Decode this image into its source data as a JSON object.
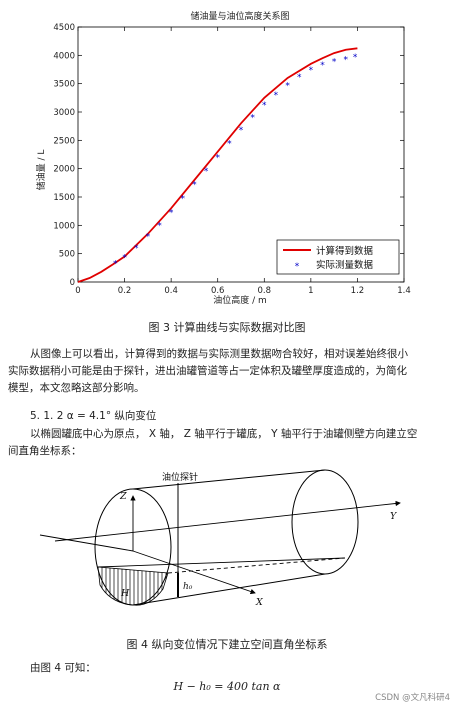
{
  "chart_data": {
    "type": "line",
    "title": "储油量与油位高度关系图",
    "xlabel": "油位高度 / m",
    "ylabel": "储油量 / L",
    "xlim": [
      0,
      1.4
    ],
    "ylim": [
      0,
      4500
    ],
    "xticks": [
      "0",
      "0.2",
      "0.4",
      "0.6",
      "0.8",
      "1",
      "1.2",
      "1.4"
    ],
    "yticks": [
      "0",
      "500",
      "1000",
      "1500",
      "2000",
      "2500",
      "3000",
      "3500",
      "4000",
      "4500"
    ],
    "legend_position": "bottom-right",
    "grid": false,
    "series": [
      {
        "name": "计算得到数据",
        "style": "line",
        "color": "#e00000",
        "x": [
          0,
          0.05,
          0.1,
          0.15,
          0.2,
          0.3,
          0.4,
          0.5,
          0.6,
          0.7,
          0.8,
          0.9,
          1.0,
          1.05,
          1.1,
          1.15,
          1.2
        ],
        "y": [
          0,
          70,
          180,
          310,
          450,
          850,
          1300,
          1800,
          2300,
          2800,
          3250,
          3600,
          3850,
          3950,
          4040,
          4100,
          4125
        ]
      },
      {
        "name": "实际测量数据",
        "style": "markers",
        "color": "#0000c8",
        "x": [
          0.16,
          0.2,
          0.25,
          0.3,
          0.35,
          0.4,
          0.45,
          0.5,
          0.55,
          0.6,
          0.65,
          0.7,
          0.75,
          0.8,
          0.85,
          0.9,
          0.95,
          1.0,
          1.05,
          1.1,
          1.15,
          1.19
        ],
        "y": [
          330,
          430,
          600,
          800,
          1000,
          1230,
          1470,
          1720,
          1960,
          2200,
          2440,
          2680,
          2900,
          3120,
          3300,
          3470,
          3620,
          3740,
          3830,
          3890,
          3930,
          3970
        ]
      }
    ]
  },
  "fig3_caption": "图 3  计算曲线与实际数据对比图",
  "para1": [
    "从图像上可以看出，计算得到的数据与实际测里数据吻合较好，相对误差始终很小",
    "实际数据稍小可能是由于探针，进出油罐管道等占一定体积及罐壁厚度造成的，为简化",
    "模型，本文忽略这部分影响。"
  ],
  "section_title": "5. 1. 2 α = 4.1° 纵向变位",
  "para2": [
    "以椭圆罐底中心为原点， X 轴， Z 轴平行于罐底， Y 轴平行于油罐侧壁方向建立空",
    "间直角坐标系："
  ],
  "diagram": {
    "probe_label": "油位探针",
    "axis_z": "Z",
    "axis_y": "Y",
    "axis_x": "X",
    "label_h_big": "H",
    "label_h0": "h₀"
  },
  "fig4_caption": "图 4  纵向变位情况下建立空间直角坐标系",
  "from_fig4": "由图 4 可知：",
  "equation": "H − h₀ = 400 tan α",
  "watermark": "CSDN @文凡科研4"
}
